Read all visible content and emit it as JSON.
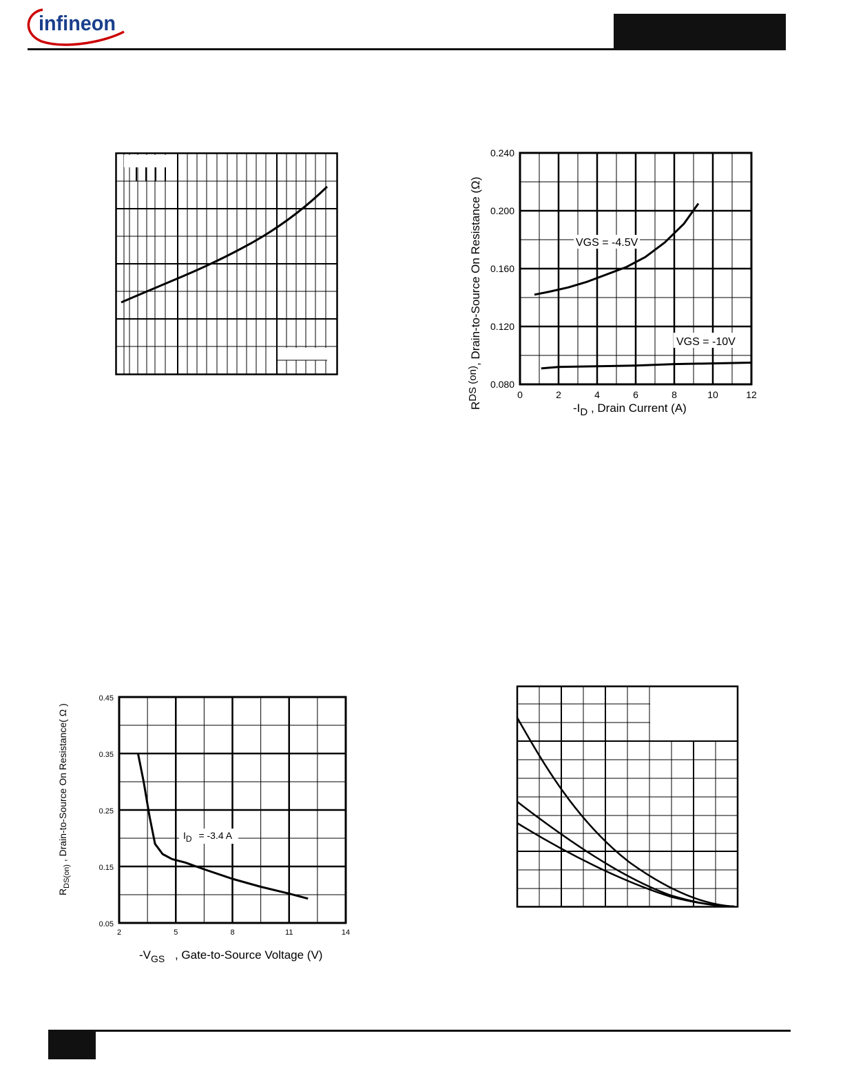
{
  "header": {
    "logo_text": "infineon",
    "brand_color": "#cc0000"
  },
  "charts": {
    "rds_vs_id": {
      "tick_y": [
        "0.240",
        "0.200",
        "0.160",
        "0.120",
        "0.080"
      ],
      "tick_x": [
        "0",
        "2",
        "4",
        "6",
        "8",
        "10",
        "12"
      ],
      "ylabel_main": "R",
      "ylabel_sub": "DS (on)",
      "ylabel_rest": ",  Drain-to-Source On Resistance (Ω)",
      "xlabel_pre": "-I",
      "xlabel_sub": "D",
      "xlabel_rest": " , Drain Current (A)",
      "label_vgs45": "VGS = -4.5V",
      "label_vgs10": "VGS = -10V"
    },
    "rds_vs_vgs": {
      "tick_y": [
        "0.45",
        "0.35",
        "0.25",
        "0.15",
        "0.05"
      ],
      "tick_x": [
        "2",
        "5",
        "8",
        "11",
        "14"
      ],
      "ylabel_main": "R",
      "ylabel_sub": "DS(on)",
      "ylabel_rest": " , Drain-to-Source On Resistance( Ω )",
      "xlabel_pre": "-V",
      "xlabel_sub": "GS",
      "xlabel_rest": " , Gate-to-Source Voltage (V)",
      "label_id_pre": "I",
      "label_id_sub": "D",
      "label_id_rest": " = -3.4 A"
    }
  },
  "chart_data": [
    {
      "type": "line",
      "title": "",
      "xlabel": "-I D , Drain Current (A)",
      "ylabel": "R DS (on), Drain-to-Source On Resistance (Ω)",
      "xlim": [
        0,
        12
      ],
      "ylim": [
        0.08,
        0.24
      ],
      "series": [
        {
          "name": "VGS = -4.5V",
          "x": [
            0.75,
            1.5,
            2.5,
            3.5,
            4.5,
            5.5,
            6.5,
            7.5,
            8.5,
            9.25
          ],
          "y": [
            0.142,
            0.144,
            0.147,
            0.151,
            0.156,
            0.161,
            0.168,
            0.178,
            0.191,
            0.205
          ]
        },
        {
          "name": "VGS = -10V",
          "x": [
            1.1,
            2,
            4,
            6,
            8,
            10,
            12
          ],
          "y": [
            0.091,
            0.092,
            0.0925,
            0.093,
            0.094,
            0.0945,
            0.095
          ]
        }
      ]
    },
    {
      "type": "line",
      "title": "",
      "xlabel": "-V GS , Gate-to-Source Voltage (V)",
      "ylabel": "R DS(on) , Drain-to-Source On Resistance( Ω )",
      "xlim": [
        2,
        14
      ],
      "ylim": [
        0.05,
        0.45
      ],
      "series": [
        {
          "name": "I D = -3.4 A",
          "x": [
            3.0,
            3.3,
            3.6,
            3.9,
            4.3,
            4.8,
            5.5,
            6.5,
            8,
            9.5,
            11,
            12.0
          ],
          "y": [
            0.35,
            0.3,
            0.24,
            0.19,
            0.172,
            0.163,
            0.157,
            0.145,
            0.128,
            0.114,
            0.102,
            0.093
          ]
        }
      ]
    }
  ]
}
